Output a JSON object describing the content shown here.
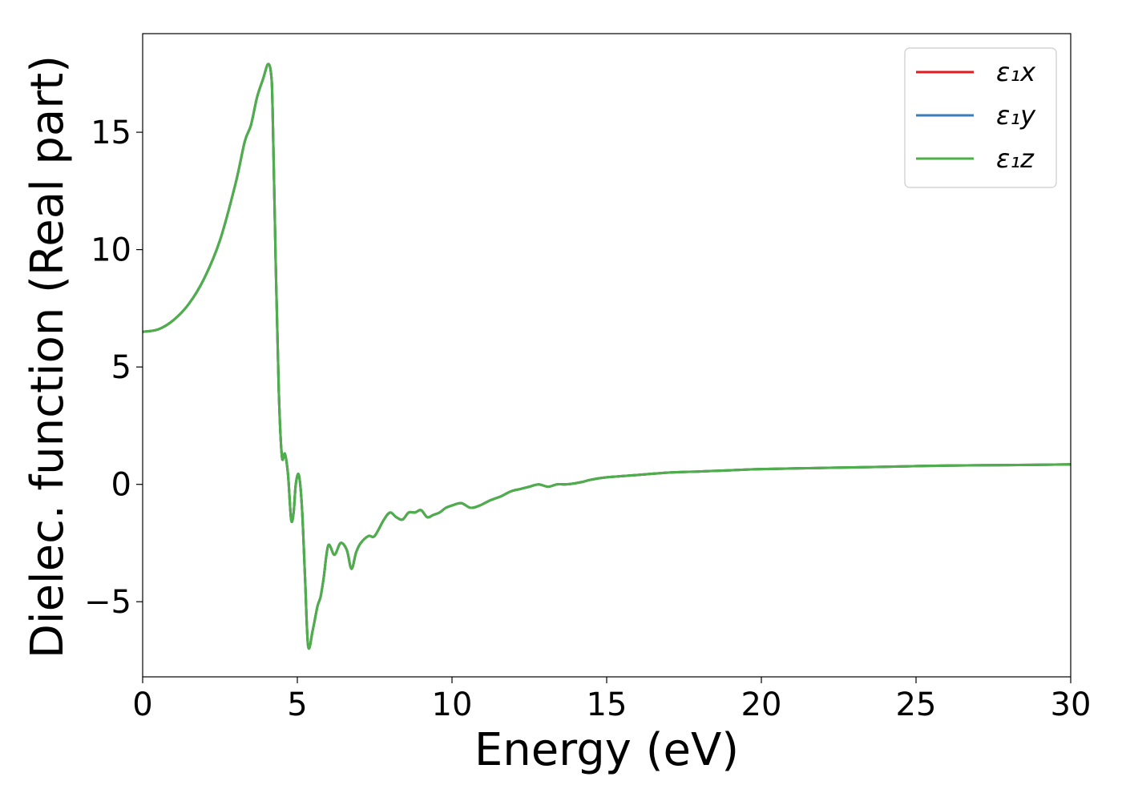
{
  "chart_data": {
    "type": "line",
    "xlabel": "Energy (eV)",
    "ylabel": "Dielec. function (Real part)",
    "xlim": [
      0,
      30
    ],
    "ylim": [
      -8.2,
      19.2
    ],
    "xticks": [
      0,
      5,
      10,
      15,
      20,
      25,
      30
    ],
    "xtick_labels": [
      "0",
      "5",
      "10",
      "15",
      "20",
      "25",
      "30"
    ],
    "yticks": [
      -5,
      0,
      5,
      10,
      15
    ],
    "ytick_labels": [
      "−5",
      "0",
      "5",
      "10",
      "15"
    ],
    "grid": false,
    "legend_position": "top-right",
    "series": [
      {
        "name": "ε₁x",
        "color": "#e41a1c",
        "x": [
          0,
          0.5,
          1,
          1.5,
          2,
          2.5,
          3,
          3.3,
          3.5,
          3.7,
          3.9,
          4.05,
          4.15,
          4.2,
          4.3,
          4.4,
          4.5,
          4.6,
          4.7,
          4.8,
          4.88,
          4.95,
          5.05,
          5.15,
          5.25,
          5.35,
          5.5,
          5.65,
          5.75,
          5.85,
          6.0,
          6.2,
          6.4,
          6.6,
          6.75,
          6.9,
          7.05,
          7.3,
          7.5,
          7.8,
          8.0,
          8.2,
          8.4,
          8.6,
          8.8,
          9.0,
          9.2,
          9.4,
          9.6,
          9.8,
          10.0,
          10.3,
          10.6,
          10.9,
          11.2,
          11.4,
          11.6,
          11.9,
          12.2,
          12.5,
          12.8,
          13.1,
          13.4,
          13.7,
          14.0,
          14.2,
          14.5,
          15.0,
          16.0,
          17.0,
          18.0,
          19.0,
          20.0,
          22.0,
          24.0,
          26.0,
          28.0,
          30.0
        ],
        "y": [
          6.5,
          6.6,
          7.0,
          7.7,
          8.8,
          10.4,
          12.8,
          14.6,
          15.3,
          16.5,
          17.3,
          17.9,
          17.5,
          16.0,
          9.5,
          4.0,
          1.2,
          1.3,
          0.4,
          -1.5,
          -1.2,
          0.0,
          0.4,
          -1.0,
          -4.0,
          -6.9,
          -6.2,
          -5.2,
          -4.8,
          -4.0,
          -2.6,
          -3.0,
          -2.5,
          -2.8,
          -3.6,
          -2.9,
          -2.5,
          -2.2,
          -2.2,
          -1.5,
          -1.2,
          -1.4,
          -1.5,
          -1.2,
          -1.2,
          -1.1,
          -1.4,
          -1.3,
          -1.2,
          -1.0,
          -0.9,
          -0.8,
          -1.0,
          -0.9,
          -0.7,
          -0.6,
          -0.5,
          -0.3,
          -0.2,
          -0.1,
          0.0,
          -0.1,
          0.0,
          0.0,
          0.05,
          0.1,
          0.2,
          0.3,
          0.4,
          0.5,
          0.55,
          0.6,
          0.65,
          0.7,
          0.75,
          0.8,
          0.82,
          0.85
        ]
      },
      {
        "name": "ε₁y",
        "color": "#377eb8",
        "x": [
          0,
          0.5,
          1,
          1.5,
          2,
          2.5,
          3,
          3.3,
          3.5,
          3.7,
          3.9,
          4.05,
          4.15,
          4.2,
          4.3,
          4.4,
          4.5,
          4.6,
          4.7,
          4.8,
          4.88,
          4.95,
          5.05,
          5.15,
          5.25,
          5.35,
          5.5,
          5.65,
          5.75,
          5.85,
          6.0,
          6.2,
          6.4,
          6.6,
          6.75,
          6.9,
          7.05,
          7.3,
          7.5,
          7.8,
          8.0,
          8.2,
          8.4,
          8.6,
          8.8,
          9.0,
          9.2,
          9.4,
          9.6,
          9.8,
          10.0,
          10.3,
          10.6,
          10.9,
          11.2,
          11.4,
          11.6,
          11.9,
          12.2,
          12.5,
          12.8,
          13.1,
          13.4,
          13.7,
          14.0,
          14.2,
          14.5,
          15.0,
          16.0,
          17.0,
          18.0,
          19.0,
          20.0,
          22.0,
          24.0,
          26.0,
          28.0,
          30.0
        ],
        "y": [
          6.5,
          6.6,
          7.0,
          7.7,
          8.8,
          10.4,
          12.8,
          14.6,
          15.3,
          16.5,
          17.3,
          17.9,
          17.5,
          16.0,
          9.5,
          4.0,
          1.2,
          1.3,
          0.4,
          -1.5,
          -1.2,
          0.0,
          0.4,
          -1.0,
          -4.0,
          -6.9,
          -6.2,
          -5.2,
          -4.8,
          -4.0,
          -2.6,
          -3.0,
          -2.5,
          -2.8,
          -3.6,
          -2.9,
          -2.5,
          -2.2,
          -2.2,
          -1.5,
          -1.2,
          -1.4,
          -1.5,
          -1.2,
          -1.2,
          -1.1,
          -1.4,
          -1.3,
          -1.2,
          -1.0,
          -0.9,
          -0.8,
          -1.0,
          -0.9,
          -0.7,
          -0.6,
          -0.5,
          -0.3,
          -0.2,
          -0.1,
          0.0,
          -0.1,
          0.0,
          0.0,
          0.05,
          0.1,
          0.2,
          0.3,
          0.4,
          0.5,
          0.55,
          0.6,
          0.65,
          0.7,
          0.75,
          0.8,
          0.82,
          0.85
        ]
      },
      {
        "name": "ε₁z",
        "color": "#4daf4a",
        "x": [
          0,
          0.5,
          1,
          1.5,
          2,
          2.5,
          3,
          3.3,
          3.5,
          3.7,
          3.9,
          4.05,
          4.15,
          4.2,
          4.3,
          4.4,
          4.5,
          4.6,
          4.7,
          4.8,
          4.88,
          4.95,
          5.05,
          5.15,
          5.25,
          5.35,
          5.5,
          5.65,
          5.75,
          5.85,
          6.0,
          6.2,
          6.4,
          6.6,
          6.75,
          6.9,
          7.05,
          7.3,
          7.5,
          7.8,
          8.0,
          8.2,
          8.4,
          8.6,
          8.8,
          9.0,
          9.2,
          9.4,
          9.6,
          9.8,
          10.0,
          10.3,
          10.6,
          10.9,
          11.2,
          11.4,
          11.6,
          11.9,
          12.2,
          12.5,
          12.8,
          13.1,
          13.4,
          13.7,
          14.0,
          14.2,
          14.5,
          15.0,
          16.0,
          17.0,
          18.0,
          19.0,
          20.0,
          22.0,
          24.0,
          26.0,
          28.0,
          30.0
        ],
        "y": [
          6.5,
          6.6,
          7.0,
          7.7,
          8.8,
          10.4,
          12.8,
          14.6,
          15.3,
          16.5,
          17.3,
          17.9,
          17.5,
          16.0,
          9.5,
          4.0,
          1.2,
          1.3,
          0.4,
          -1.5,
          -1.2,
          0.0,
          0.4,
          -1.0,
          -4.0,
          -6.9,
          -6.2,
          -5.2,
          -4.8,
          -4.0,
          -2.6,
          -3.0,
          -2.5,
          -2.8,
          -3.6,
          -2.9,
          -2.5,
          -2.2,
          -2.2,
          -1.5,
          -1.2,
          -1.4,
          -1.5,
          -1.2,
          -1.2,
          -1.1,
          -1.4,
          -1.3,
          -1.2,
          -1.0,
          -0.9,
          -0.8,
          -1.0,
          -0.9,
          -0.7,
          -0.6,
          -0.5,
          -0.3,
          -0.2,
          -0.1,
          0.0,
          -0.1,
          0.0,
          0.0,
          0.05,
          0.1,
          0.2,
          0.3,
          0.4,
          0.5,
          0.55,
          0.6,
          0.65,
          0.7,
          0.75,
          0.8,
          0.82,
          0.85
        ]
      }
    ]
  }
}
